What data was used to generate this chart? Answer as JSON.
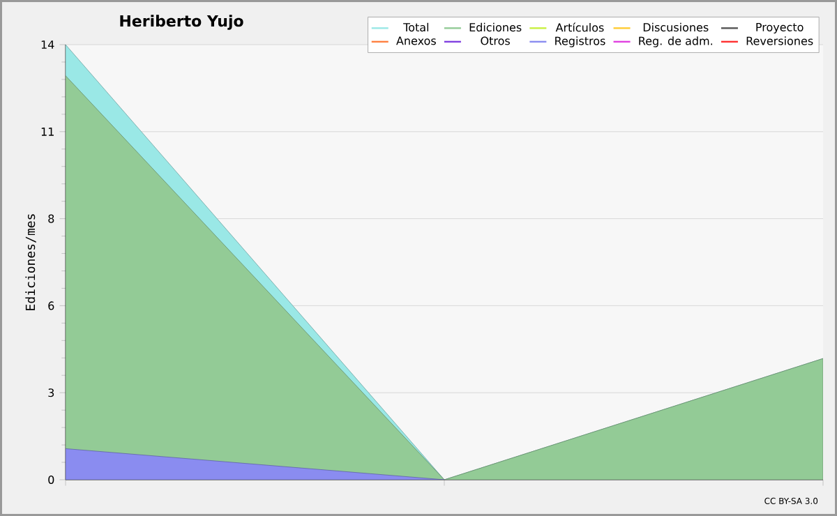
{
  "chart_data": {
    "type": "line",
    "title": "Heriberto Yujo",
    "ylabel": "Ediciones/mes",
    "categories": [
      null,
      null,
      null
    ],
    "series": [
      {
        "name": "Total",
        "type": "area",
        "color": "#9ae8e6",
        "values": [
          14,
          0,
          3.9
        ]
      },
      {
        "name": "Ediciones",
        "type": "area",
        "color": "#93cb96",
        "values": [
          13.0,
          0,
          3.9
        ]
      },
      {
        "name": "Artículos",
        "color": "#c8f040",
        "values": [
          null,
          null,
          null
        ]
      },
      {
        "name": "Discusiones",
        "color": "#ffcc33",
        "values": [
          null,
          null,
          null
        ]
      },
      {
        "name": "Proyecto",
        "color": "#555555",
        "values": [
          null,
          null,
          null
        ]
      },
      {
        "name": "Anexos",
        "color": "#ff8040",
        "values": [
          null,
          null,
          null
        ]
      },
      {
        "name": "Otros",
        "color": "#8040e0",
        "values": [
          null,
          null,
          null
        ]
      },
      {
        "name": "Registros",
        "type": "area",
        "color": "#8a8cf0",
        "values": [
          1.0,
          0,
          null
        ]
      },
      {
        "name": "Reg. de adm.",
        "color": "#e040e0",
        "values": [
          null,
          null,
          null
        ]
      },
      {
        "name": "Reversiones",
        "color": "#ff3030",
        "values": [
          null,
          null,
          null
        ]
      }
    ],
    "ylim": [
      0,
      14
    ],
    "yticks": [
      0,
      {
        "value": 2.8,
        "label": "3"
      },
      {
        "value": 5.6,
        "label": "6"
      },
      {
        "value": 8.4,
        "label": "8"
      },
      {
        "value": 11.2,
        "label": "11"
      },
      14
    ],
    "grid": "y",
    "legend": "top right",
    "tick_labels": "y",
    "annotations": [
      "CC BY-SA 3.0"
    ]
  }
}
